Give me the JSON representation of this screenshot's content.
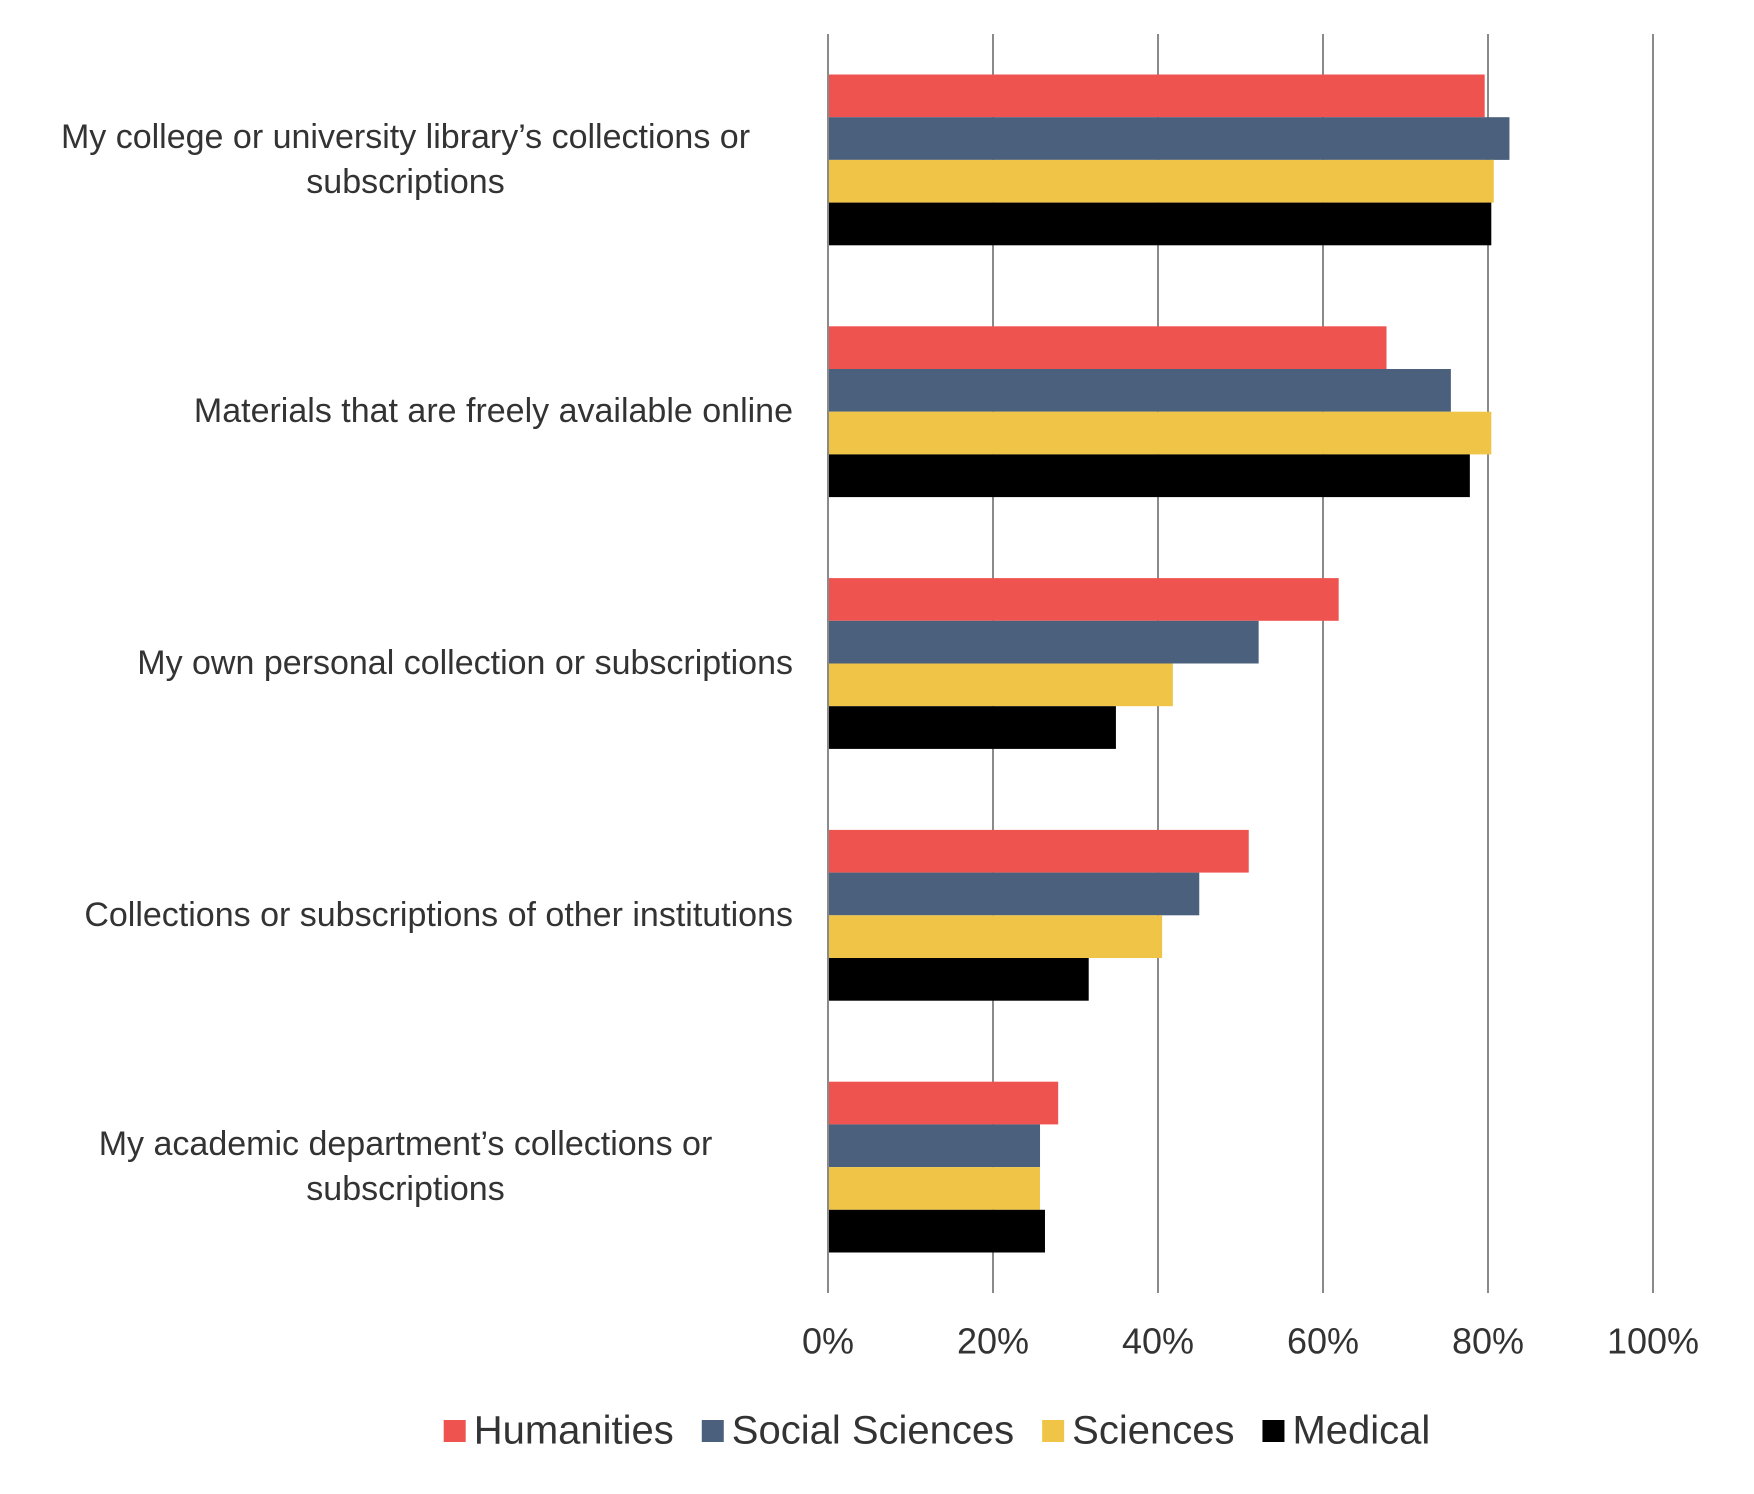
{
  "chart_data": {
    "type": "hbar",
    "categories": [
      "My college or university library’s collections or subscriptions",
      "Materials that are freely available online",
      "My own personal collection or subscriptions",
      "Collections or subscriptions of other institutions",
      "My academic department’s collections or subscriptions"
    ],
    "series": [
      {
        "name": "Humanities",
        "color": "#ef5350",
        "values": [
          79.6,
          67.7,
          61.9,
          51.0,
          27.9
        ]
      },
      {
        "name": "Social Sciences",
        "color": "#4b607c",
        "values": [
          82.6,
          75.5,
          52.2,
          45.0,
          25.7
        ]
      },
      {
        "name": "Sciences",
        "color": "#f0c547",
        "values": [
          80.7,
          80.4,
          41.8,
          40.5,
          25.7
        ]
      },
      {
        "name": "Medical",
        "color": "#000000",
        "values": [
          80.4,
          77.8,
          34.9,
          31.6,
          26.3
        ]
      }
    ],
    "xlim": [
      0,
      100
    ],
    "xticks": [
      {
        "value": 0,
        "label": "0%"
      },
      {
        "value": 20,
        "label": "20%"
      },
      {
        "value": 40,
        "label": "40%"
      },
      {
        "value": 60,
        "label": "60%"
      },
      {
        "value": 80,
        "label": "80%"
      },
      {
        "value": 100,
        "label": "100%"
      }
    ],
    "grid": true,
    "legend": "bottom"
  }
}
